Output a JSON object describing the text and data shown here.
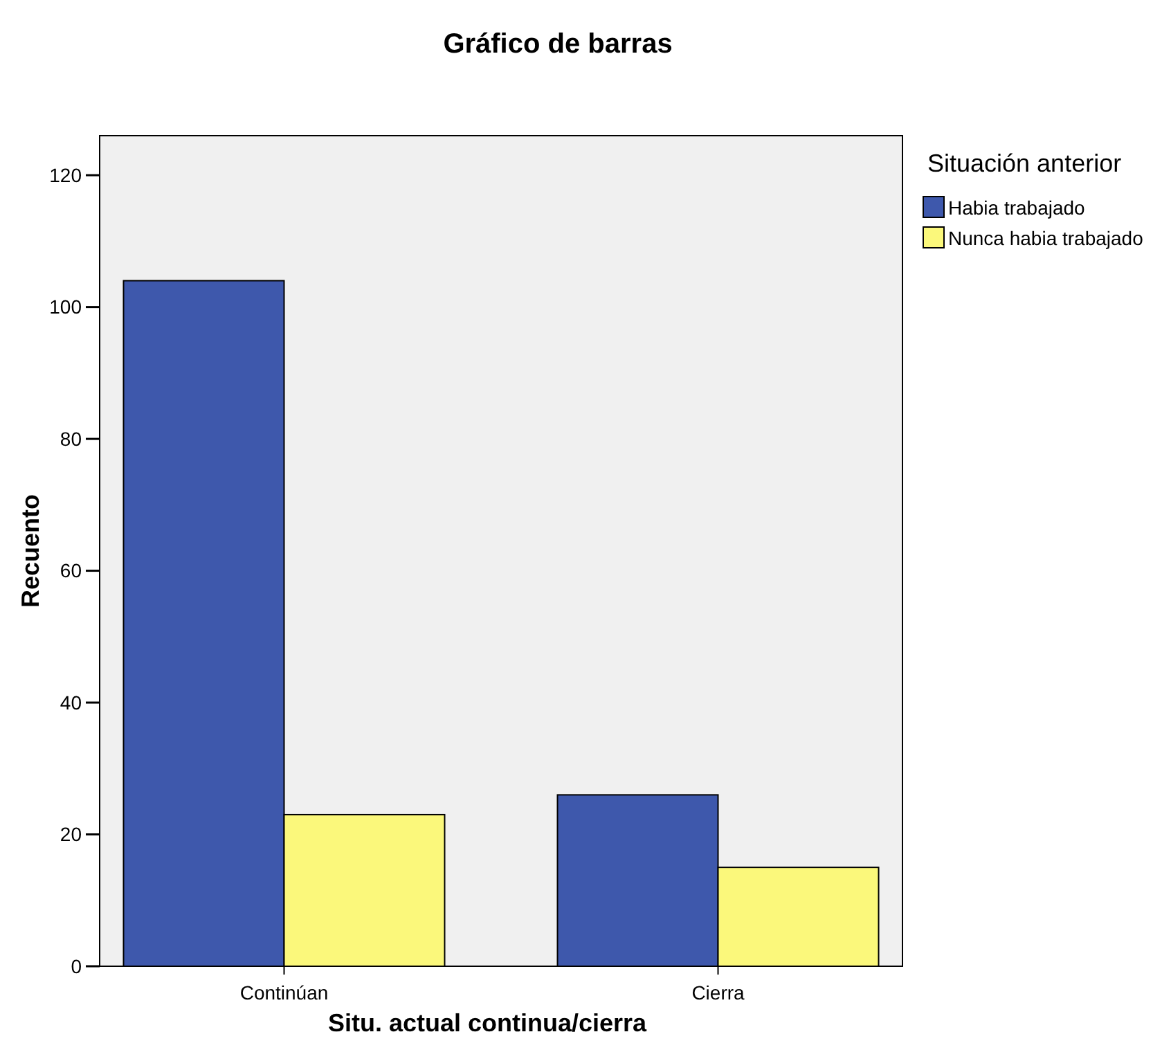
{
  "chart_data": {
    "type": "bar",
    "title": "Gráfico de barras",
    "xlabel": "Situ. actual continua/cierra",
    "ylabel": "Recuento",
    "legend_title": "Situación anterior",
    "categories": [
      "Continúan",
      "Cierra"
    ],
    "series": [
      {
        "name": "Habia trabajado",
        "color": "#3e58ac",
        "values": [
          104,
          26
        ]
      },
      {
        "name": "Nunca habia trabajado",
        "color": "#fbf87b",
        "values": [
          23,
          15
        ]
      }
    ],
    "ylim": [
      0,
      126
    ],
    "yticks": [
      0,
      20,
      40,
      60,
      80,
      100,
      120
    ],
    "grid": false,
    "legend": "top right"
  }
}
